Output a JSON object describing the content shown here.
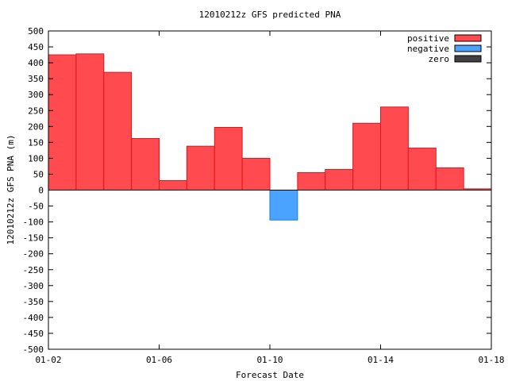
{
  "chart_data": {
    "type": "bar",
    "title": "12010212z GFS predicted PNA",
    "xlabel": "Forecast Date",
    "ylabel": "12010212z GFS PNA (m)",
    "ylim": [
      -500,
      500
    ],
    "yticks": [
      -500,
      -450,
      -400,
      -350,
      -300,
      -250,
      -200,
      -150,
      -100,
      -50,
      0,
      50,
      100,
      150,
      200,
      250,
      300,
      350,
      400,
      450,
      500
    ],
    "xlim": [
      0,
      16
    ],
    "xticks": [
      {
        "x": 0,
        "label": "01-02"
      },
      {
        "x": 4,
        "label": "01-06"
      },
      {
        "x": 8,
        "label": "01-10"
      },
      {
        "x": 12,
        "label": "01-14"
      },
      {
        "x": 16,
        "label": "01-18"
      }
    ],
    "bar_width": 1,
    "x": [
      0,
      1,
      2,
      3,
      4,
      5,
      6,
      7,
      8,
      9,
      10,
      11,
      12,
      13,
      14,
      15
    ],
    "values": [
      425,
      428,
      370,
      162,
      30,
      138,
      197,
      100,
      -94,
      55,
      65,
      210,
      261,
      132,
      70,
      4
    ],
    "grid": false,
    "legend": {
      "placement": "top-right",
      "entries": [
        {
          "label": "positive",
          "color": "#ff4a4f"
        },
        {
          "label": "negative",
          "color": "#4aa4ff"
        },
        {
          "label": "zero",
          "color": "#404040"
        }
      ]
    },
    "colors": {
      "positive_fill": "#ff4a4f",
      "positive_stroke": "#e0161c",
      "negative_fill": "#4aa4ff",
      "negative_stroke": "#1f7ad6",
      "zero_fill": "#404040"
    }
  }
}
